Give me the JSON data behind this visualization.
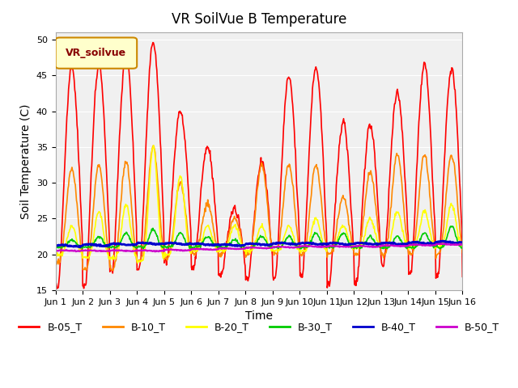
{
  "title": "VR SoilVue B Temperature",
  "xlabel": "Time",
  "ylabel": "Soil Temperature (C)",
  "ylim": [
    15,
    51
  ],
  "yticks": [
    15,
    20,
    25,
    30,
    35,
    40,
    45,
    50
  ],
  "background_color": "#ffffff",
  "plot_bg_color": "#f0f0f0",
  "series_colors": {
    "B-05_T": "#ff0000",
    "B-10_T": "#ff8800",
    "B-20_T": "#ffff00",
    "B-30_T": "#00cc00",
    "B-40_T": "#0000cc",
    "B-50_T": "#cc00cc"
  },
  "legend_label": "VR_soilvue",
  "legend_bg": "#ffffcc",
  "legend_border": "#cc8800",
  "num_days": 15,
  "x_labels": [
    "Jun 1",
    "Jun 2",
    "Jun 3",
    "Jun 4",
    "Jun 5",
    "Jun 6",
    "Jun 7",
    "Jun 8",
    "Jun 9",
    "Jun 10",
    "Jun 11",
    "Jun 12",
    "Jun 13",
    "Jun 14",
    "Jun 15",
    "Jun 16"
  ],
  "b05_peaks": [
    46,
    46.5,
    48,
    49.5,
    40,
    35,
    26.5,
    33,
    45,
    46,
    38.5,
    38,
    42.5,
    46.5,
    46
  ],
  "b05_mins": [
    15.5,
    15.5,
    17.5,
    18,
    19,
    18,
    17,
    16.5,
    16.5,
    17,
    16,
    16,
    18.5,
    17.5,
    17
  ],
  "b10_peaks": [
    32,
    32.5,
    33,
    35,
    30,
    27,
    25,
    32.5,
    32.5,
    32.5,
    28,
    31.5,
    34,
    34,
    34
  ],
  "b10_mins": [
    19,
    18,
    18,
    19,
    19.5,
    20,
    20,
    20,
    20,
    20,
    20,
    20,
    20,
    20,
    20
  ],
  "b20_peaks": [
    24,
    26,
    27,
    35,
    31,
    24,
    24,
    24,
    24,
    25,
    24,
    25,
    26,
    26,
    27
  ],
  "b20_mins": [
    20,
    19.5,
    19.5,
    19,
    20,
    20.5,
    20.5,
    20.5,
    20.5,
    20.5,
    21,
    21,
    21,
    21,
    21
  ],
  "b30_peaks": [
    22,
    22.5,
    23,
    23.5,
    23,
    22.5,
    22,
    22.5,
    22.5,
    23,
    23,
    22.5,
    22.5,
    23,
    24
  ],
  "b30_mins": [
    21,
    21,
    21,
    21,
    21,
    21,
    21,
    21,
    21,
    21,
    21,
    21,
    21,
    21,
    21
  ],
  "b40_base": [
    21.2,
    21.3,
    21.4,
    21.5,
    21.5,
    21.4,
    21.3,
    21.4,
    21.5,
    21.5,
    21.5,
    21.5,
    21.5,
    21.6,
    21.7
  ],
  "b50_base": [
    20.5,
    20.5,
    20.5,
    20.5,
    20.6,
    20.7,
    20.8,
    20.9,
    21.0,
    21.1,
    21.1,
    21.1,
    21.2,
    21.3,
    21.4
  ]
}
